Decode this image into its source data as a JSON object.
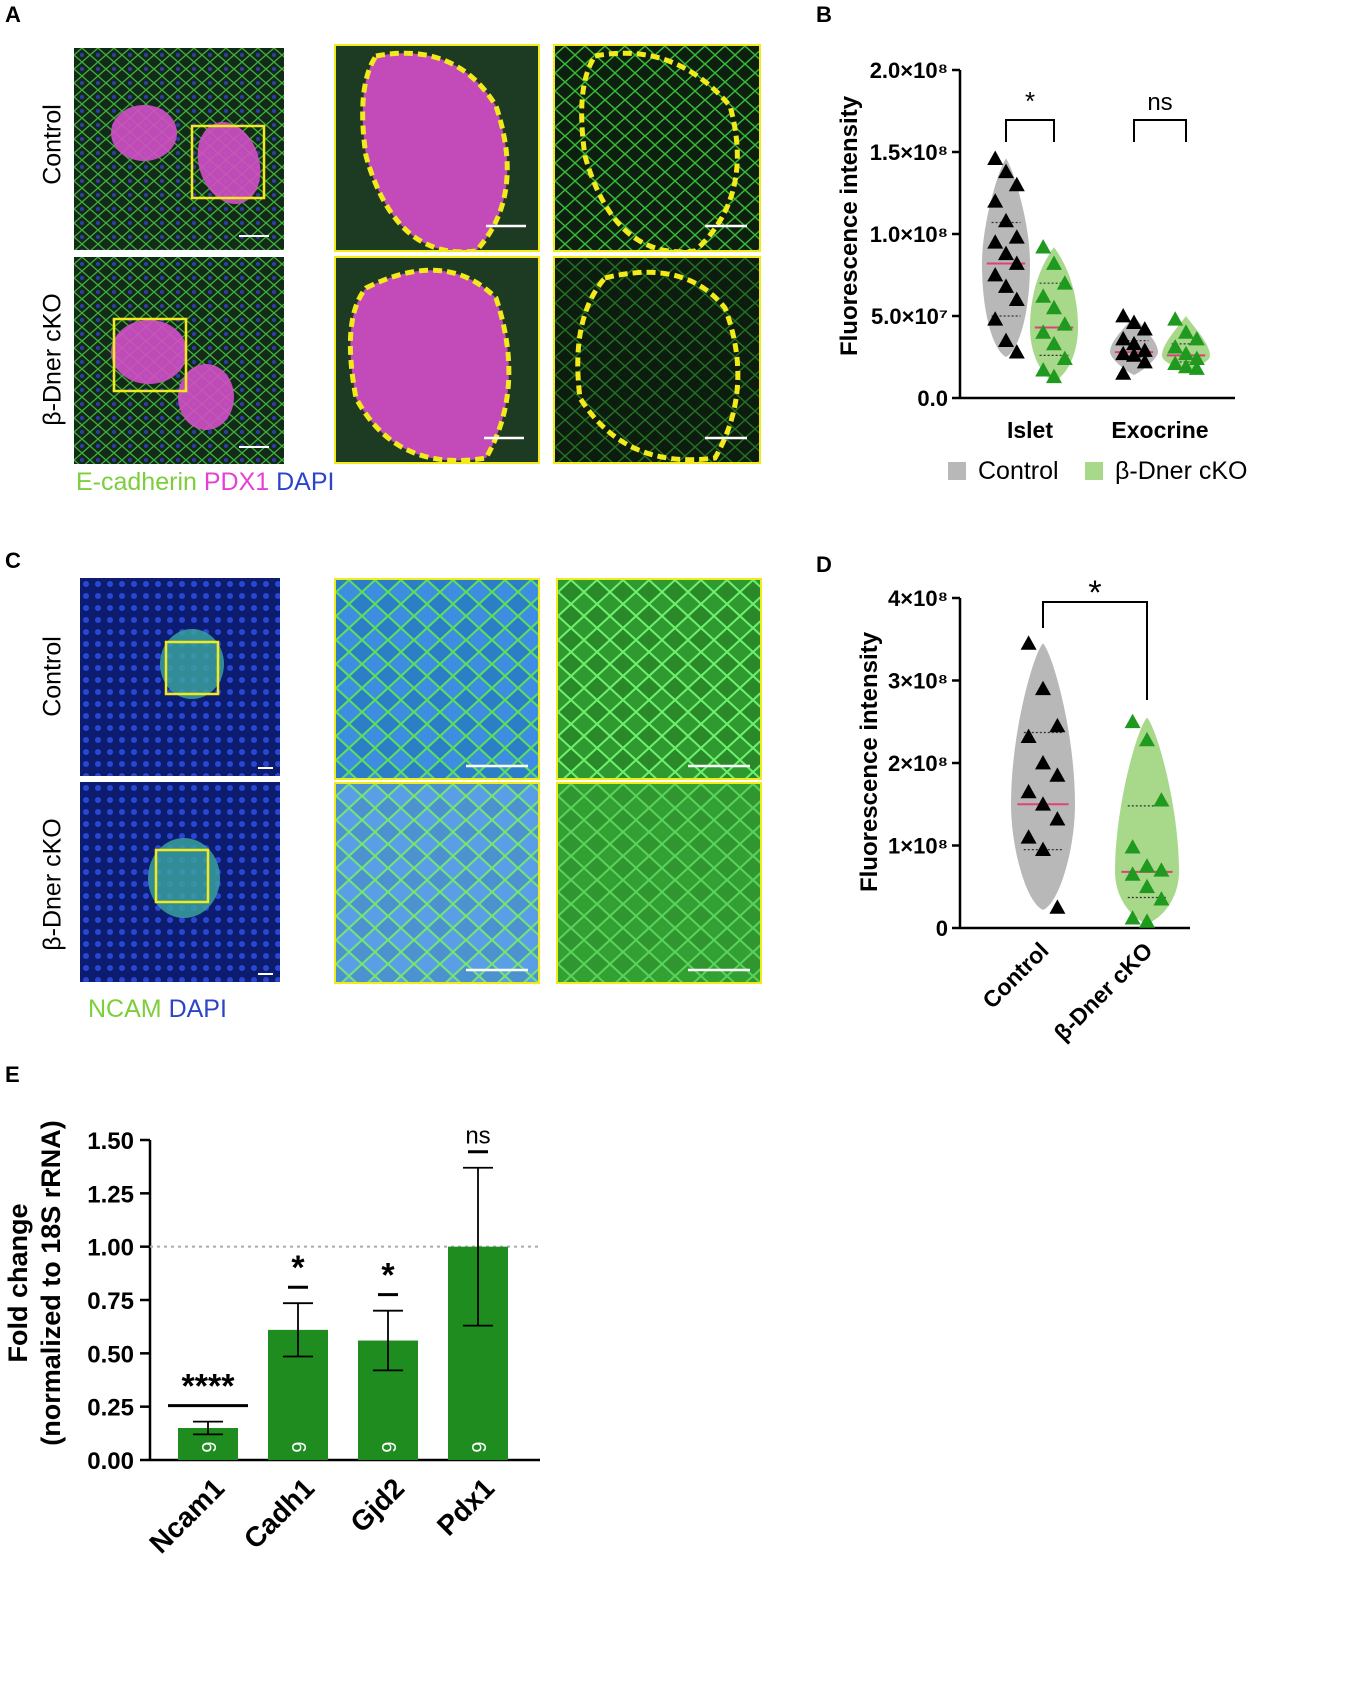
{
  "panels": {
    "A": {
      "letter": "A",
      "row_labels": [
        "Control",
        "β-Dner cKO"
      ],
      "legend": [
        {
          "text": "E-cadherin",
          "color": "#7ccf3a"
        },
        {
          "text": "PDX1",
          "color": "#e63fd6"
        },
        {
          "text": "DAPI",
          "color": "#2b45c8"
        }
      ]
    },
    "B": {
      "letter": "B"
    },
    "C": {
      "letter": "C",
      "row_labels": [
        "Control",
        "β-Dner cKO"
      ],
      "legend": [
        {
          "text": "NCAM",
          "color": "#7ccf3a"
        },
        {
          "text": "DAPI",
          "color": "#2b45c8"
        }
      ]
    },
    "D": {
      "letter": "D"
    },
    "E": {
      "letter": "E"
    }
  },
  "colors": {
    "control": "#b8b8b8",
    "cko": "#a8d88a",
    "cko_marker": "#1f9a1f",
    "bar": "#1f8c1f",
    "median": "#e0407a",
    "roi_box": "#f2ea1a"
  },
  "chart_data": [
    {
      "panel": "B",
      "type": "violin",
      "ylabel": "Fluorescence  intensity",
      "yticks": [
        "0.0",
        "5.0×10⁷",
        "1.0×10⁸",
        "1.5×10⁸",
        "2.0×10⁸"
      ],
      "ylim": [
        0,
        200000000
      ],
      "categories": [
        "Islet",
        "Exocrine"
      ],
      "legend": [
        "Control",
        "β-Dner cKO"
      ],
      "legend_position": "bottom",
      "series": [
        {
          "name": "Control",
          "groups": [
            {
              "points": [
                146000000,
                138000000,
                130000000,
                120000000,
                108000000,
                98000000,
                95000000,
                88000000,
                82000000,
                75000000,
                68000000,
                60000000,
                48000000,
                35000000,
                28000000
              ],
              "median": 82000000,
              "q1": 50000000,
              "q3": 107000000,
              "min": 25000000,
              "max": 146000000
            },
            {
              "points": [
                50000000,
                46000000,
                42000000,
                36000000,
                33000000,
                29000000,
                27000000,
                26000000,
                22000000,
                15000000
              ],
              "median": 28000000,
              "q1": 25000000,
              "q3": 35000000,
              "min": 14000000,
              "max": 50000000
            }
          ]
        },
        {
          "name": "β-Dner cKO",
          "groups": [
            {
              "points": [
                92000000,
                82000000,
                70000000,
                62000000,
                55000000,
                45000000,
                40000000,
                33000000,
                24000000,
                17000000,
                13000000
              ],
              "median": 43000000,
              "q1": 26000000,
              "q3": 70000000,
              "min": 10000000,
              "max": 92000000
            },
            {
              "points": [
                48000000,
                40000000,
                36000000,
                31000000,
                27000000,
                24000000,
                21000000,
                19000000,
                18000000
              ],
              "median": 26000000,
              "q1": 22000000,
              "q3": 33000000,
              "min": 16000000,
              "max": 50000000
            }
          ]
        }
      ],
      "annotations": [
        {
          "text": "*",
          "between": "Islet"
        },
        {
          "text": "ns",
          "between": "Exocrine"
        }
      ]
    },
    {
      "panel": "D",
      "type": "violin",
      "ylabel": "Fluorescence  intensity",
      "yticks": [
        "0",
        "1×10⁸",
        "2×10⁸",
        "3×10⁸",
        "4×10⁸"
      ],
      "ylim": [
        0,
        400000000
      ],
      "categories": [
        "Control",
        "β-Dner cKO"
      ],
      "series": [
        {
          "name": "Control",
          "points": [
            345000000,
            290000000,
            245000000,
            232000000,
            200000000,
            185000000,
            165000000,
            150000000,
            132000000,
            110000000,
            95000000,
            25000000
          ],
          "median": 150000000,
          "q1": 95000000,
          "q3": 237000000,
          "min": 22000000,
          "max": 345000000
        },
        {
          "name": "β-Dner cKO",
          "points": [
            250000000,
            228000000,
            155000000,
            98000000,
            75000000,
            70000000,
            65000000,
            50000000,
            35000000,
            12000000,
            8000000
          ],
          "median": 68000000,
          "q1": 37000000,
          "q3": 148000000,
          "min": 5000000,
          "max": 255000000
        }
      ],
      "annotations": [
        {
          "text": "*",
          "between": "Control-β-Dner cKO"
        }
      ]
    },
    {
      "panel": "E",
      "type": "bar",
      "ylabel": [
        "Fold change",
        "(normalized to 18S rRNA)"
      ],
      "yticks": [
        "0.00",
        "0.25",
        "0.50",
        "0.75",
        "1.00",
        "1.25",
        "1.50"
      ],
      "ylim": [
        0,
        1.5
      ],
      "reference_line": 1.0,
      "categories": [
        "Ncam1",
        "Cadh1",
        "Gjd2",
        "Pdx1"
      ],
      "values": [
        0.15,
        0.61,
        0.56,
        1.0
      ],
      "errors": [
        0.03,
        0.125,
        0.14,
        0.37
      ],
      "n": [
        "6",
        "6",
        "6",
        "6"
      ],
      "significance": [
        "****",
        "*",
        "*",
        "ns"
      ]
    }
  ]
}
